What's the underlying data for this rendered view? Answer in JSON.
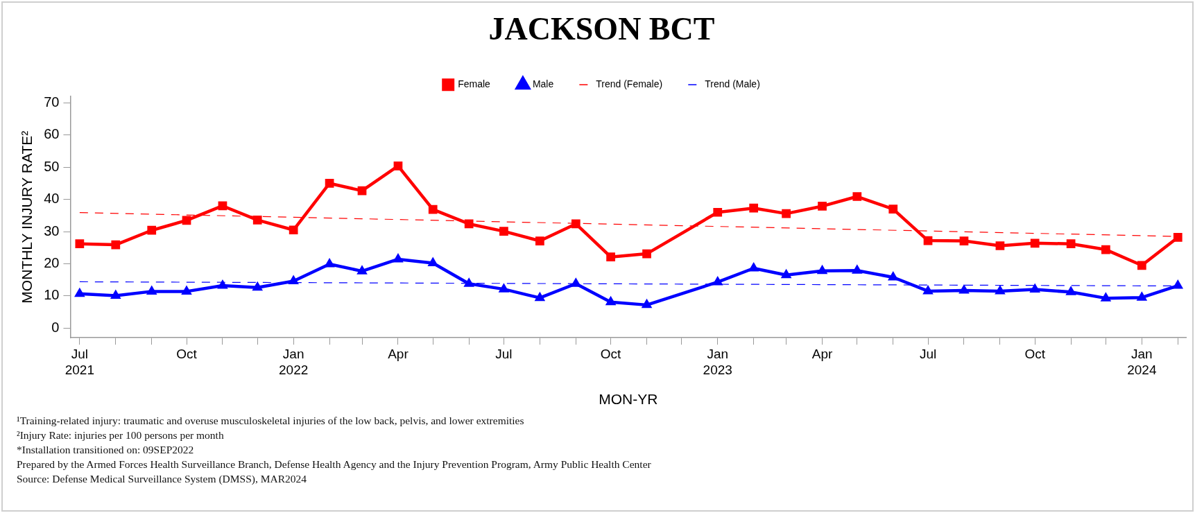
{
  "chart_data": {
    "type": "line",
    "title": "JACKSON BCT",
    "xlabel": "MON-YR",
    "ylabel": "MONTHLY INJURY RATE²",
    "x": [
      "2021-07",
      "2021-08",
      "2021-09",
      "2021-10",
      "2021-11",
      "2021-12",
      "2022-01",
      "2022-02",
      "2022-03",
      "2022-04",
      "2022-05",
      "2022-06",
      "2022-07",
      "2022-08",
      "2022-09",
      "2022-10",
      "2022-11",
      "2023-01",
      "2023-02",
      "2023-03",
      "2023-04",
      "2023-05",
      "2023-06",
      "2023-07",
      "2023-08",
      "2023-09",
      "2023-10",
      "2023-11",
      "2023-12",
      "2024-01",
      "2024-02"
    ],
    "series": [
      {
        "name": "Female",
        "color": "#ff0000",
        "marker": "square",
        "line_style": "solid",
        "values": [
          26.2,
          25.9,
          30.4,
          33.5,
          38.0,
          33.6,
          30.5,
          45.0,
          42.7,
          50.4,
          36.9,
          32.4,
          30.1,
          27.1,
          32.4,
          22.1,
          23.1,
          36.0,
          37.3,
          35.6,
          37.9,
          40.9,
          37.0,
          27.2,
          27.1,
          25.6,
          26.4,
          26.2,
          24.4,
          19.5,
          28.2
        ]
      },
      {
        "name": "Male",
        "color": "#0000ff",
        "marker": "triangle",
        "line_style": "solid",
        "values": [
          10.7,
          10.1,
          11.4,
          11.4,
          13.2,
          12.6,
          14.6,
          19.9,
          17.7,
          21.4,
          20.2,
          13.8,
          12.1,
          9.4,
          13.8,
          8.1,
          7.2,
          14.3,
          18.6,
          16.5,
          17.8,
          17.9,
          15.8,
          11.5,
          11.7,
          11.5,
          12.0,
          11.2,
          9.3,
          9.5,
          13.2
        ]
      },
      {
        "name": "Trend (Female)",
        "type": "line",
        "color": "#ff0000",
        "marker": "none",
        "line_style": "dashed",
        "x": [
          "2021-07",
          "2024-02"
        ],
        "values": [
          35.9,
          28.5
        ]
      },
      {
        "name": "Trend (Male)",
        "type": "line",
        "color": "#0000ff",
        "marker": "none",
        "line_style": "dashed",
        "x": [
          "2021-07",
          "2024-02"
        ],
        "values": [
          14.4,
          13.1
        ]
      }
    ],
    "xlim": [
      "2021-06-23",
      "2024-02-08"
    ],
    "xticks": [
      {
        "value": "2021-07",
        "label": "Jul 2021"
      },
      {
        "value": "2021-08",
        "label": null
      },
      {
        "value": "2021-09",
        "label": null
      },
      {
        "value": "2021-10",
        "label": "Oct"
      },
      {
        "value": "2021-11",
        "label": null
      },
      {
        "value": "2021-12",
        "label": null
      },
      {
        "value": "2022-01",
        "label": "Jan 2022"
      },
      {
        "value": "2022-02",
        "label": null
      },
      {
        "value": "2022-03",
        "label": null
      },
      {
        "value": "2022-04",
        "label": "Apr"
      },
      {
        "value": "2022-05",
        "label": null
      },
      {
        "value": "2022-06",
        "label": null
      },
      {
        "value": "2022-07",
        "label": "Jul"
      },
      {
        "value": "2022-08",
        "label": null
      },
      {
        "value": "2022-09",
        "label": null
      },
      {
        "value": "2022-10",
        "label": "Oct"
      },
      {
        "value": "2022-11",
        "label": null
      },
      {
        "value": "2022-12",
        "label": null
      },
      {
        "value": "2023-01",
        "label": "Jan 2023"
      },
      {
        "value": "2023-02",
        "label": null
      },
      {
        "value": "2023-03",
        "label": null
      },
      {
        "value": "2023-04",
        "label": "Apr"
      },
      {
        "value": "2023-05",
        "label": null
      },
      {
        "value": "2023-06",
        "label": null
      },
      {
        "value": "2023-07",
        "label": "Jul"
      },
      {
        "value": "2023-08",
        "label": null
      },
      {
        "value": "2023-09",
        "label": null
      },
      {
        "value": "2023-10",
        "label": "Oct"
      },
      {
        "value": "2023-11",
        "label": null
      },
      {
        "value": "2023-12",
        "label": null
      },
      {
        "value": "2024-01",
        "label": "Jan 2024"
      },
      {
        "value": "2024-02",
        "label": null
      }
    ],
    "ylim": [
      -3,
      72
    ],
    "yticks": [
      0,
      10,
      20,
      30,
      40,
      50,
      60,
      70
    ],
    "grid": false,
    "legend": "top",
    "annotations": [
      "¹Training-related injury: traumatic and overuse musculoskeletal injuries of the low back, pelvis, and lower extremities",
      "²Injury Rate: injuries per 100 persons per month",
      "*Installation transitioned on: 09SEP2022",
      "Prepared by the Armed Forces Health Surveillance Branch, Defense Health Agency and the Injury Prevention Program, Army Public Health Center",
      "Source: Defense Medical Surveillance System (DMSS), MAR2024"
    ]
  }
}
